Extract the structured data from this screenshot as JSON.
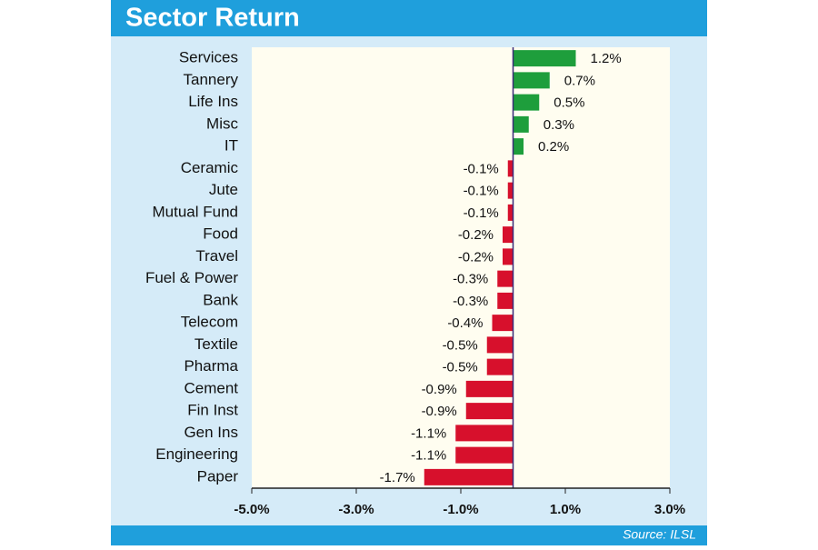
{
  "chart_data": {
    "type": "bar",
    "orientation": "horizontal",
    "title": "Sector Return",
    "source": "Source: ILSL",
    "categories": [
      "Services",
      "Tannery",
      "Life Ins",
      "Misc",
      "IT",
      "Ceramic",
      "Jute",
      "Mutual Fund",
      "Food",
      "Travel",
      "Fuel & Power",
      "Bank",
      "Telecom",
      "Textile",
      "Pharma",
      "Cement",
      "Fin Inst",
      "Gen Ins",
      "Engineering",
      "Paper"
    ],
    "values": [
      1.2,
      0.7,
      0.5,
      0.3,
      0.2,
      -0.1,
      -0.1,
      -0.1,
      -0.2,
      -0.2,
      -0.3,
      -0.3,
      -0.4,
      -0.5,
      -0.5,
      -0.9,
      -0.9,
      -1.1,
      -1.1,
      -1.7
    ],
    "value_labels": [
      "1.2%",
      "0.7%",
      "0.5%",
      "0.3%",
      "0.2%",
      "-0.1%",
      "-0.1%",
      "-0.1%",
      "-0.2%",
      "-0.2%",
      "-0.3%",
      "-0.3%",
      "-0.4%",
      "-0.5%",
      "-0.5%",
      "-0.9%",
      "-0.9%",
      "-1.1%",
      "-1.1%",
      "-1.7%"
    ],
    "positive_color": "#1e9e3c",
    "negative_color": "#d7102c",
    "xlim": [
      -5,
      3
    ],
    "xticks": [
      {
        "value": -5,
        "label": "-5.0%"
      },
      {
        "value": -3,
        "label": "-3.0%"
      },
      {
        "value": -1,
        "label": "-1.0%"
      },
      {
        "value": 1,
        "label": "1.0%"
      },
      {
        "value": 3,
        "label": "3.0%"
      }
    ]
  }
}
